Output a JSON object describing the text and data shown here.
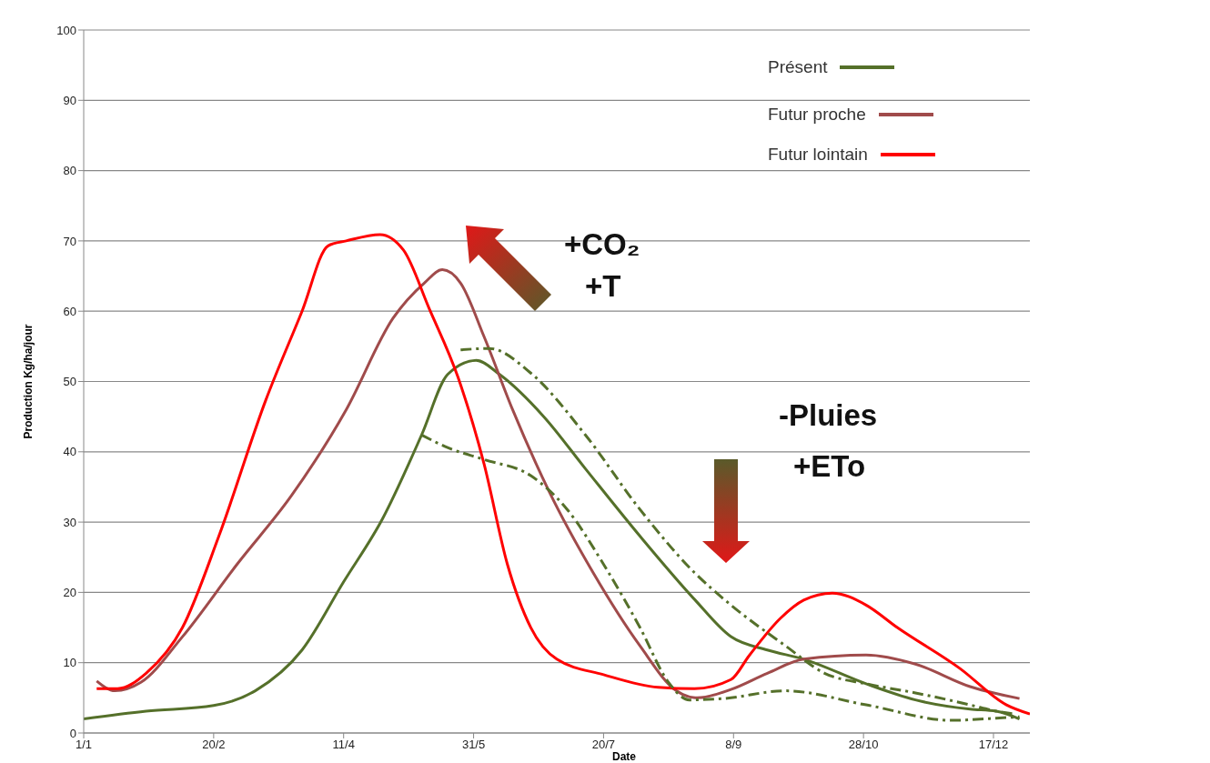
{
  "chart_data": {
    "type": "line",
    "xlabel": "Date",
    "ylabel": "Production Kg/ha/jour",
    "ylim": [
      0,
      100
    ],
    "yticks": [
      0,
      10,
      20,
      30,
      40,
      50,
      60,
      70,
      80,
      90,
      100
    ],
    "xlim": [
      "--01-01",
      "--12-31"
    ],
    "xticks": [
      {
        "value": "--01-01",
        "label": "1/1"
      },
      {
        "value": "--02-20",
        "label": "20/2"
      },
      {
        "value": "--04-11",
        "label": "11/4"
      },
      {
        "value": "--05-31",
        "label": "31/5"
      },
      {
        "value": "--07-20",
        "label": "20/7"
      },
      {
        "value": "--09-08",
        "label": "8/9"
      },
      {
        "value": "--10-28",
        "label": "28/10"
      },
      {
        "value": "--12-17",
        "label": "17/12"
      }
    ],
    "grid": "y",
    "legend": "top right",
    "marker": "none",
    "annotations": [
      "+CO₂",
      "+T",
      "-Pluies",
      "+ETo"
    ],
    "series": [
      {
        "name": "Présent",
        "color": "#55702a",
        "line_style": "solid",
        "x": [
          "--01-01",
          "--01-25",
          "--02-20",
          "--03-08",
          "--03-26",
          "--04-11",
          "--04-26",
          "--05-11",
          "--05-21",
          "--06-01",
          "--06-10",
          "--06-27",
          "--07-13",
          "--08-03",
          "--08-24",
          "--09-07",
          "--09-21",
          "--10-05",
          "--10-29",
          "--11-17",
          "--12-08",
          "--12-18",
          "--12-27"
        ],
        "values": [
          2,
          3.1,
          3.9,
          6,
          11.8,
          21.5,
          30.5,
          42.4,
          51,
          53,
          51,
          45,
          37.6,
          28,
          19,
          13.7,
          11.8,
          10.5,
          7,
          4.7,
          3.4,
          3.1,
          2
        ]
      },
      {
        "name": "Futur proche",
        "color": "#a04b4b",
        "line_style": "solid",
        "x": [
          "--01-06",
          "--01-13",
          "--01-23",
          "--02-08",
          "--03-01",
          "--03-22",
          "--04-12",
          "--04-30",
          "--05-12",
          "--05-19",
          "--05-26",
          "--06-04",
          "--06-15",
          "--06-29",
          "--07-16",
          "--08-03",
          "--08-17",
          "--08-25",
          "--09-07",
          "--09-21",
          "--10-05",
          "--10-29",
          "--11-17",
          "--12-08",
          "--12-27"
        ],
        "values": [
          7.4,
          6,
          7.2,
          13.7,
          24,
          33.8,
          46,
          59,
          64,
          65.9,
          64,
          56.4,
          46,
          34.4,
          22.8,
          12.4,
          6,
          5,
          6.2,
          8.5,
          10.5,
          11.1,
          9.8,
          6.6,
          4.9
        ]
      },
      {
        "name": "Futur lointain",
        "color": "#ff0000",
        "line_style": "solid",
        "x": [
          "--01-06",
          "--01-14",
          "--01-25",
          "--02-08",
          "--02-22",
          "--03-12",
          "--03-26",
          "--04-05",
          "--04-12",
          "--04-25",
          "--05-04",
          "--05-14",
          "--05-25",
          "--06-04",
          "--06-13",
          "--06-22",
          "--07-02",
          "--07-20",
          "--08-10",
          "--08-24",
          "--09-07",
          "--09-14",
          "--09-26",
          "--10-05",
          "--10-16",
          "--10-29",
          "--11-10",
          "--12-04",
          "--12-22",
          "--12-31"
        ],
        "values": [
          6.3,
          6.3,
          8.5,
          15,
          28,
          47.3,
          60,
          69.3,
          70,
          70.9,
          68.7,
          60.3,
          50.6,
          38.3,
          24,
          15,
          10.5,
          8.3,
          6.5,
          6.3,
          7.6,
          11,
          16.3,
          18.9,
          19.9,
          18.2,
          15,
          9.2,
          4,
          2.7
        ]
      },
      {
        "color": "#55702a",
        "line_style": "dashed",
        "x": [
          "--05-11",
          "--05-21",
          "--06-04",
          "--06-22",
          "--07-06",
          "--07-20",
          "--08-03",
          "--08-14",
          "--08-22",
          "--09-04",
          "--09-28",
          "--10-29",
          "--12-01",
          "--12-18",
          "--12-27"
        ],
        "values": [
          42.4,
          40.6,
          38.9,
          36.6,
          31.8,
          24,
          15,
          7.2,
          4.7,
          4.9,
          6,
          4,
          1.8,
          2.1,
          2.3
        ]
      },
      {
        "color": "#55702a",
        "line_style": "dashed",
        "x": [
          "--05-26",
          "--06-06",
          "--06-22",
          "--07-13",
          "--08-03",
          "--08-24",
          "--09-07",
          "--09-28",
          "--10-13",
          "--10-29",
          "--11-17",
          "--12-08",
          "--12-18",
          "--12-25"
        ],
        "values": [
          54.5,
          54.7,
          51.2,
          42.4,
          31.8,
          22.8,
          18.2,
          12.4,
          8.5,
          7,
          5.7,
          4,
          3.1,
          2.7
        ]
      }
    ]
  }
}
